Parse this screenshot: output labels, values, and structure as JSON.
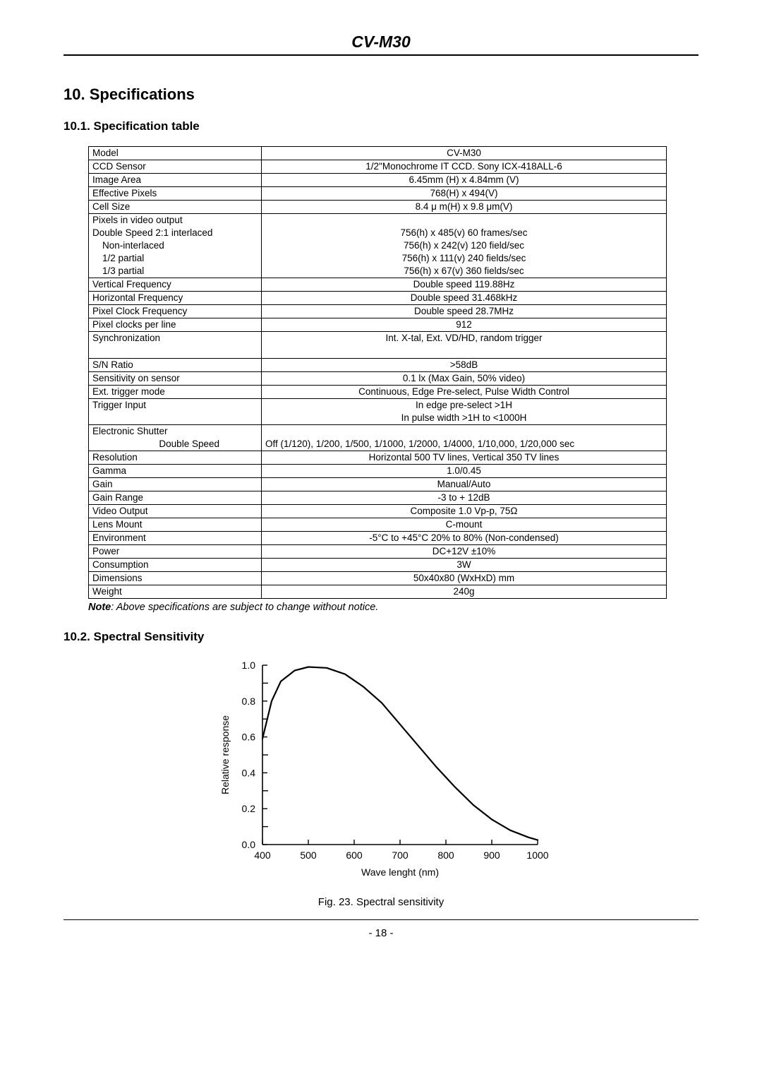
{
  "header": {
    "title": "CV-M30"
  },
  "section": {
    "num": "10.",
    "title": "Specifications"
  },
  "subsection1": {
    "num": "10.1.",
    "title": "Specification table"
  },
  "subsection2": {
    "num": "10.2.",
    "title": "Spectral Sensitivity"
  },
  "note": {
    "label": "Note",
    "body": ": Above specifications are subject to change without notice."
  },
  "figcaption": "Fig. 23. Spectral sensitivity",
  "page_number": "- 18 -",
  "spec_rows": [
    {
      "label": "Model",
      "value": "CV-M30"
    },
    {
      "label": "CCD Sensor",
      "value": "1/2\"Monochrome IT CCD. Sony ICX-418ALL-6"
    },
    {
      "label": "Image Area",
      "value": "6.45mm (H) x 4.84mm (V)"
    },
    {
      "label": "Effective Pixels",
      "value": "768(H) x 494(V)"
    },
    {
      "label": "Cell Size",
      "value": "8.4 μ m(H) x 9.8 μm(V)"
    },
    {
      "label": "Pixels in video output",
      "sublabels": [
        "Double Speed 2:1 interlaced",
        "Non-interlaced",
        "1/2 partial",
        "1/3 partial"
      ],
      "subvalues": [
        "",
        "756(h) x 485(v) 60 frames/sec",
        "756(h) x 242(v) 120 field/sec",
        "756(h) x 111(v) 240 fields/sec",
        "756(h) x 67(v) 360 fields/sec"
      ]
    },
    {
      "label": "Vertical Frequency",
      "value": "Double speed 119.88Hz"
    },
    {
      "label": "Horizontal Frequency",
      "value": "Double speed 31.468kHz"
    },
    {
      "label": "Pixel Clock Frequency",
      "value": "Double speed 28.7MHz"
    },
    {
      "label": "Pixel clocks per line",
      "value": "912"
    },
    {
      "label": "Synchronization",
      "value": "Int. X-tal, Ext. VD/HD, random trigger",
      "tall": true
    },
    {
      "label": "S/N Ratio",
      "value": ">58dB"
    },
    {
      "label": "Sensitivity on sensor",
      "value": "0.1  lx (Max Gain, 50% video)"
    },
    {
      "label": "Ext. trigger mode",
      "value": "Continuous, Edge Pre-select, Pulse Width Control"
    },
    {
      "label": "Trigger Input",
      "subvalues": [
        "In edge pre-select  >1H",
        "In pulse width >1H to <1000H"
      ]
    },
    {
      "label": "Electronic Shutter",
      "sublabels_right": [
        "Double Speed"
      ],
      "value_left": "Off (1/120), 1/200, 1/500, 1/1000, 1/2000, 1/4000, 1/10,000, 1/20,000 sec"
    },
    {
      "label": "Resolution",
      "value": "Horizontal 500 TV lines, Vertical 350 TV lines"
    },
    {
      "label": "Gamma",
      "value": "1.0/0.45"
    },
    {
      "label": "Gain",
      "value": "Manual/Auto"
    },
    {
      "label": "Gain Range",
      "value": "-3 to + 12dB"
    },
    {
      "label": "Video Output",
      "value": "Composite 1.0 Vp-p, 75Ω"
    },
    {
      "label": "Lens Mount",
      "value": "C-mount"
    },
    {
      "label": "Environment",
      "value": "-5°C to +45°C 20% to 80% (Non-condensed)"
    },
    {
      "label": "Power",
      "value": "DC+12V ±10%"
    },
    {
      "label": "Consumption",
      "value": "3W"
    },
    {
      "label": "Dimensions",
      "value": "50x40x80 (WxHxD) mm"
    },
    {
      "label": "Weight",
      "value": "240g"
    }
  ],
  "chart": {
    "type": "line",
    "xlabel": "Wave  lenght  (nm)",
    "ylabel": "Relative response",
    "xlim": [
      400,
      1000
    ],
    "ylim": [
      0.0,
      1.0
    ],
    "xticks": [
      400,
      500,
      600,
      700,
      800,
      900,
      1000
    ],
    "yticks": [
      0.0,
      0.2,
      0.4,
      0.6,
      0.8,
      1.0
    ],
    "line_color": "#000000",
    "line_width": 2.2,
    "background_color": "#ffffff",
    "axis_color": "#000000",
    "tick_fontsize": 14,
    "label_fontsize": 14,
    "data": [
      [
        400,
        0.59
      ],
      [
        420,
        0.8
      ],
      [
        440,
        0.91
      ],
      [
        470,
        0.97
      ],
      [
        500,
        0.99
      ],
      [
        540,
        0.985
      ],
      [
        580,
        0.95
      ],
      [
        620,
        0.88
      ],
      [
        660,
        0.79
      ],
      [
        700,
        0.67
      ],
      [
        740,
        0.55
      ],
      [
        780,
        0.43
      ],
      [
        820,
        0.32
      ],
      [
        860,
        0.22
      ],
      [
        900,
        0.14
      ],
      [
        940,
        0.08
      ],
      [
        980,
        0.04
      ],
      [
        1000,
        0.025
      ]
    ]
  }
}
